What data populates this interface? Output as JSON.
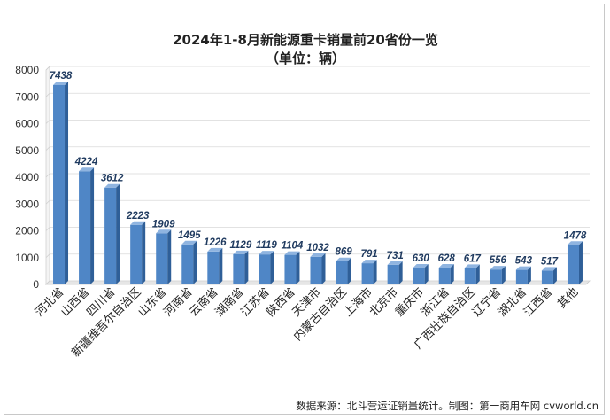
{
  "chart_data": {
    "type": "bar",
    "title": "2024年1-8月新能源重卡销量前20省份一览",
    "subtitle": "（单位：辆）",
    "xlabel": "",
    "ylabel": "",
    "categories": [
      "河北省",
      "山西省",
      "四川省",
      "新疆维吾尔自治区",
      "山东省",
      "河南省",
      "云南省",
      "湖南省",
      "江苏省",
      "陕西省",
      "天津市",
      "内蒙古自治区",
      "上海市",
      "北京市",
      "重庆市",
      "浙江省",
      "广西壮族自治区",
      "辽宁省",
      "湖北省",
      "江西省",
      "其他"
    ],
    "values": [
      7438,
      4224,
      3612,
      2223,
      1909,
      1495,
      1226,
      1129,
      1119,
      1104,
      1032,
      869,
      791,
      731,
      630,
      628,
      617,
      556,
      543,
      517,
      1478
    ],
    "ylim": [
      0,
      8000
    ],
    "yticks": [
      "0",
      "1000",
      "2000",
      "3000",
      "4000",
      "5000",
      "6000",
      "7000",
      "8000"
    ],
    "grid": true,
    "legend": "none",
    "bar_color": "#4f86c6",
    "bar_side_color": "#2f5f98",
    "bar_top_color": "#8fb4e0",
    "source": "数据来源：北斗营运证销量统计。制图：第一商用车网 cvworld.cn"
  }
}
